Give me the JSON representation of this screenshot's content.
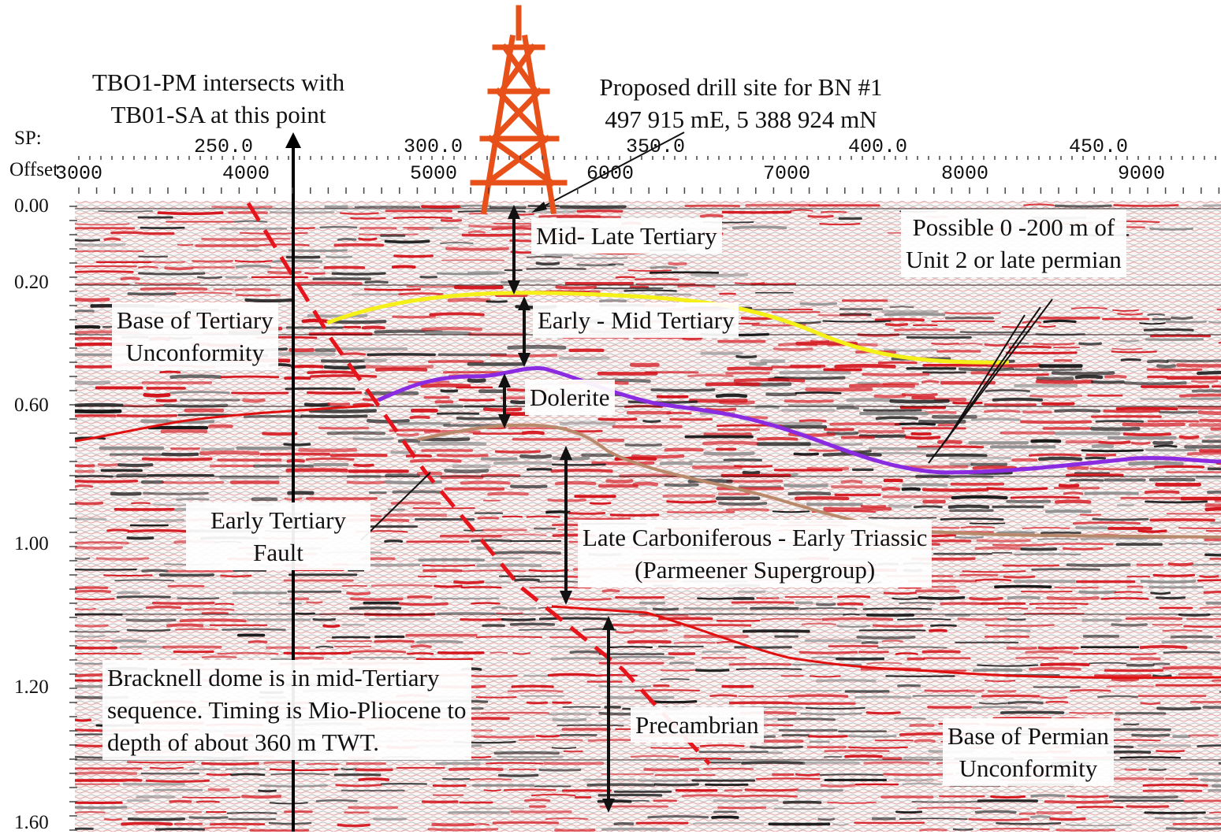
{
  "axes": {
    "sp_label": "SP:",
    "offset_label": "Offset",
    "sp_ticks": [
      "250.0",
      "300.0",
      "350.0",
      "400.0",
      "450.0"
    ],
    "offset_ticks": [
      "3000",
      "4000",
      "5000",
      "6000",
      "7000",
      "8000",
      "9000"
    ],
    "time_ticks": [
      "0.00",
      "0.20",
      "0.60",
      "1.00",
      "1.20",
      "1.60"
    ]
  },
  "annotations": {
    "intersect": [
      "TBO1-PM intersects with",
      "TB01-SA at this point"
    ],
    "drill_site": [
      "Proposed drill site for BN #1",
      "497 915 mE, 5 388 924 mN"
    ],
    "mid_late_tertiary": "Mid- Late Tertiary",
    "early_mid_tertiary": "Early - Mid Tertiary",
    "dolerite": "Dolerite",
    "possible_unit2": [
      "Possible 0 -200 m of",
      "Unit 2 or late permian"
    ],
    "base_tertiary": [
      "Base of Tertiary",
      "Unconformity"
    ],
    "early_tertiary_fault": [
      "Early Tertiary",
      "Fault"
    ],
    "late_carboniferous": [
      "Late Carboniferous - Early Triassic",
      "(Parmeener Supergroup)"
    ],
    "bracknell": [
      "Bracknell dome is in mid-Tertiary",
      "sequence. Timing is Mio-Pliocene to",
      "depth of about 360 m TWT."
    ],
    "precambrian": "Precambrian",
    "base_permian": [
      "Base of Permian",
      "Unconformity"
    ]
  },
  "colors": {
    "seismic_red": "#d4141c",
    "seismic_black": "#1a1a1a",
    "fault": "#e8141c",
    "horizon_yellow": "#f4f018",
    "horizon_purple": "#8a2be2",
    "horizon_brown": "#b8896a",
    "horizon_red": "#e01010",
    "derrick": "#e8501a"
  },
  "icons": {
    "drill_rig": "drilling-derrick-icon"
  }
}
